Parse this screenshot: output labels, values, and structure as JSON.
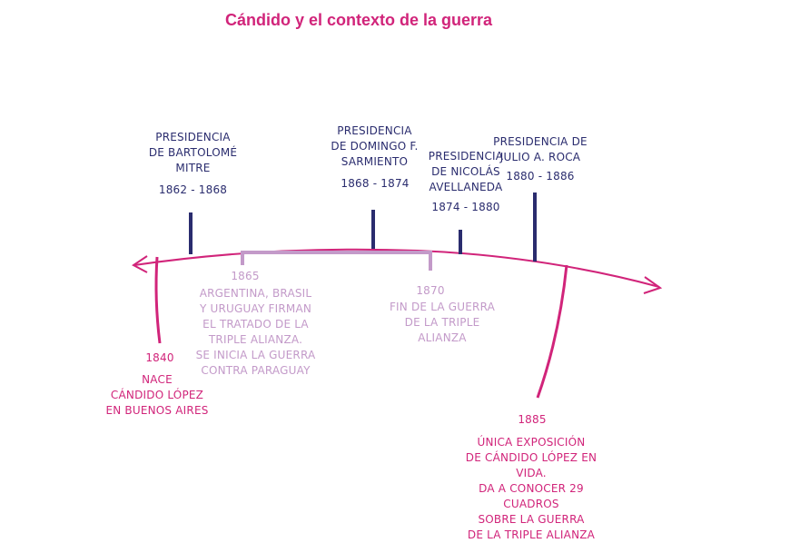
{
  "title": "Cándido y el contexto de la guerra",
  "colors": {
    "title": "#d1247a",
    "timeline": "#d1247a",
    "presidency": "#2a2c6e",
    "war": "#c39ac9",
    "candido": "#d1247a"
  },
  "presidencies": [
    {
      "label": "PRESIDENCIA\nDE BARTOLOMÉ\nMITRE",
      "years": "1862 - 1868"
    },
    {
      "label": "PRESIDENCIA\nDE DOMINGO F.\nSARMIENTO",
      "years": "1868 - 1874"
    },
    {
      "label": "PRESIDENCIA\nDE NICOLÁS\nAVELLANEDA",
      "years": "1874 - 1880"
    },
    {
      "label": "PRESIDENCIA DE\nJULIO A. ROCA",
      "years": "1880 - 1886"
    }
  ],
  "war_events": [
    {
      "year": "1865",
      "text": "ARGENTINA, BRASIL\nY URUGUAY FIRMAN\nEL TRATADO DE LA\nTRIPLE ALIANZA.\nSE INICIA LA GUERRA\nCONTRA PARAGUAY"
    },
    {
      "year": "1870",
      "text": "FIN DE LA GUERRA\nDE LA TRIPLE\nALIANZA"
    }
  ],
  "candido_events": [
    {
      "year": "1840",
      "text": "NACE\nCÁNDIDO LÓPEZ\nEN BUENOS AIRES"
    },
    {
      "year": "1885",
      "text": "ÚNICA EXPOSICIÓN\nDE CÁNDIDO LÓPEZ EN VIDA.\nDA A CONOCER 29 CUADROS\nSOBRE LA GUERRA\nDE LA TRIPLE ALIANZA"
    }
  ]
}
